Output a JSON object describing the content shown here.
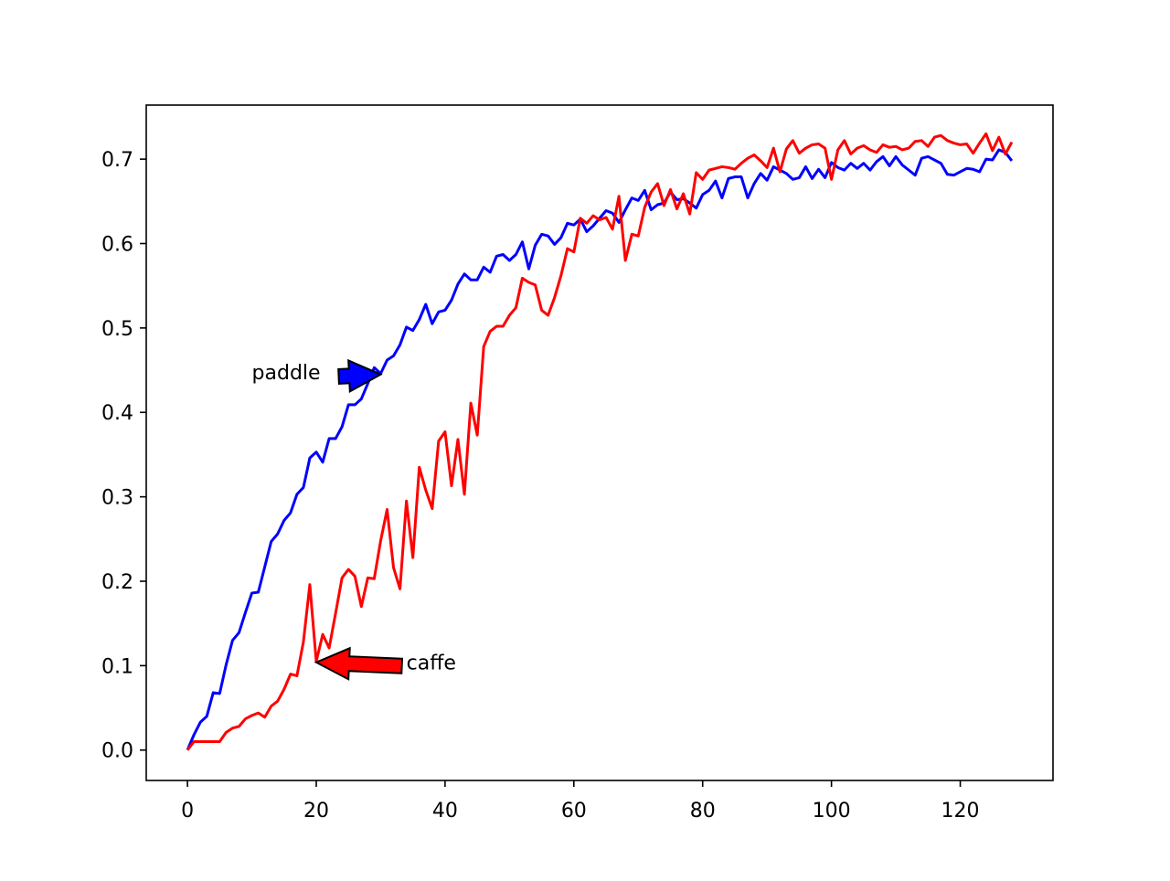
{
  "chart_data": {
    "type": "line",
    "title": "",
    "xlabel": "",
    "ylabel": "",
    "xlim": [
      -6.4,
      134.4
    ],
    "ylim": [
      -0.036,
      0.764
    ],
    "xticks": [
      0,
      20,
      40,
      60,
      80,
      100,
      120
    ],
    "yticks": [
      0.0,
      0.1,
      0.2,
      0.3,
      0.4,
      0.5,
      0.6,
      0.7
    ],
    "xtick_labels": [
      "0",
      "20",
      "40",
      "60",
      "80",
      "100",
      "120"
    ],
    "ytick_labels": [
      "0.0",
      "0.1",
      "0.2",
      "0.3",
      "0.4",
      "0.5",
      "0.6",
      "0.7"
    ],
    "grid": false,
    "series": [
      {
        "name": "paddle",
        "color": "#0000ff",
        "values": [
          0.0,
          0.018,
          0.033,
          0.04,
          0.068,
          0.067,
          0.101,
          0.13,
          0.139,
          0.163,
          0.186,
          0.187,
          0.217,
          0.247,
          0.256,
          0.272,
          0.281,
          0.303,
          0.311,
          0.346,
          0.353,
          0.341,
          0.369,
          0.369,
          0.383,
          0.409,
          0.409,
          0.416,
          0.434,
          0.453,
          0.446,
          0.462,
          0.467,
          0.48,
          0.501,
          0.497,
          0.51,
          0.528,
          0.505,
          0.519,
          0.521,
          0.533,
          0.552,
          0.564,
          0.557,
          0.557,
          0.572,
          0.566,
          0.585,
          0.587,
          0.58,
          0.587,
          0.602,
          0.57,
          0.598,
          0.611,
          0.609,
          0.599,
          0.607,
          0.624,
          0.622,
          0.629,
          0.614,
          0.621,
          0.63,
          0.639,
          0.636,
          0.625,
          0.64,
          0.654,
          0.651,
          0.663,
          0.64,
          0.646,
          0.648,
          0.661,
          0.652,
          0.653,
          0.648,
          0.642,
          0.658,
          0.663,
          0.674,
          0.654,
          0.677,
          0.679,
          0.679,
          0.654,
          0.671,
          0.683,
          0.675,
          0.691,
          0.687,
          0.683,
          0.676,
          0.678,
          0.691,
          0.677,
          0.688,
          0.678,
          0.696,
          0.69,
          0.687,
          0.695,
          0.689,
          0.695,
          0.687,
          0.697,
          0.703,
          0.692,
          0.703,
          0.693,
          0.687,
          0.681,
          0.701,
          0.703,
          0.699,
          0.695,
          0.682,
          0.681,
          0.685,
          0.689,
          0.688,
          0.685,
          0.7,
          0.699,
          0.711,
          0.708,
          0.698
        ]
      },
      {
        "name": "caffe",
        "color": "#ff0000",
        "values": [
          0.0,
          0.01,
          0.01,
          0.01,
          0.01,
          0.01,
          0.021,
          0.026,
          0.028,
          0.037,
          0.041,
          0.044,
          0.039,
          0.052,
          0.058,
          0.072,
          0.09,
          0.088,
          0.128,
          0.196,
          0.105,
          0.137,
          0.121,
          0.162,
          0.204,
          0.214,
          0.206,
          0.17,
          0.204,
          0.203,
          0.248,
          0.285,
          0.216,
          0.191,
          0.295,
          0.228,
          0.335,
          0.308,
          0.286,
          0.366,
          0.377,
          0.313,
          0.368,
          0.303,
          0.411,
          0.373,
          0.478,
          0.496,
          0.502,
          0.502,
          0.515,
          0.524,
          0.559,
          0.554,
          0.551,
          0.521,
          0.515,
          0.536,
          0.562,
          0.594,
          0.59,
          0.63,
          0.624,
          0.633,
          0.628,
          0.631,
          0.617,
          0.656,
          0.58,
          0.611,
          0.609,
          0.643,
          0.661,
          0.671,
          0.645,
          0.664,
          0.641,
          0.659,
          0.635,
          0.684,
          0.676,
          0.687,
          0.689,
          0.691,
          0.69,
          0.688,
          0.695,
          0.701,
          0.705,
          0.698,
          0.69,
          0.713,
          0.685,
          0.712,
          0.722,
          0.707,
          0.713,
          0.717,
          0.718,
          0.713,
          0.676,
          0.711,
          0.722,
          0.706,
          0.713,
          0.716,
          0.711,
          0.708,
          0.717,
          0.714,
          0.715,
          0.711,
          0.713,
          0.721,
          0.722,
          0.715,
          0.726,
          0.728,
          0.722,
          0.719,
          0.717,
          0.718,
          0.707,
          0.719,
          0.73,
          0.71,
          0.726,
          0.706,
          0.72
        ]
      }
    ],
    "annotations": [
      {
        "text": "paddle",
        "xy": [
          30,
          0.445
        ],
        "xytext": [
          10,
          0.448
        ],
        "color": "#0000ff"
      },
      {
        "text": "caffe",
        "xy": [
          20,
          0.104
        ],
        "xytext": [
          34,
          0.104
        ],
        "color": "#ff0000"
      }
    ]
  }
}
